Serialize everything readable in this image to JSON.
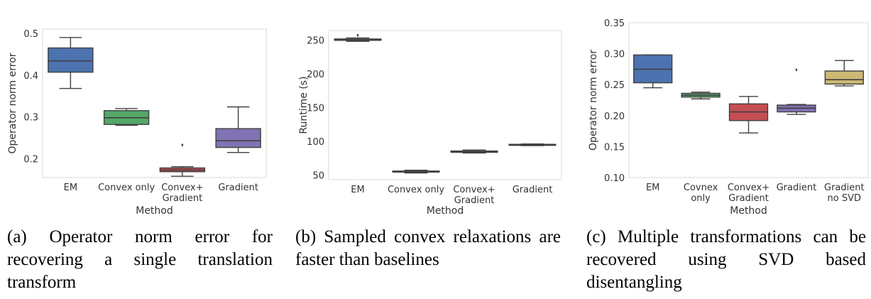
{
  "chart_data": [
    {
      "type": "box",
      "xlabel": "Method",
      "ylabel": "Operator norm error",
      "ylim": [
        0.155,
        0.51
      ],
      "yticks": [
        "0.2",
        "0.3",
        "0.4",
        "0.5"
      ],
      "ytick_values": [
        0.2,
        0.3,
        0.4,
        0.5
      ],
      "categories": [
        [
          "EM"
        ],
        [
          "Convex only"
        ],
        [
          "Convex+",
          "Gradient"
        ],
        [
          "Gradient"
        ]
      ],
      "boxes": [
        {
          "whisker_low": 0.368,
          "q1": 0.407,
          "median": 0.434,
          "q3": 0.465,
          "whisker_high": 0.49,
          "outliers": [],
          "color": "#4c72b0"
        },
        {
          "whisker_low": 0.28,
          "q1": 0.282,
          "median": 0.298,
          "q3": 0.315,
          "whisker_high": 0.32,
          "outliers": [],
          "color": "#55a868"
        },
        {
          "whisker_low": 0.158,
          "q1": 0.169,
          "median": 0.173,
          "q3": 0.178,
          "whisker_high": 0.181,
          "outliers": [
            0.233
          ],
          "color": "#c44e52"
        },
        {
          "whisker_low": 0.215,
          "q1": 0.227,
          "median": 0.243,
          "q3": 0.272,
          "whisker_high": 0.324,
          "outliers": [],
          "color": "#8172b2"
        }
      ],
      "caption": "(a) Operator norm error for recovering a single translation transform"
    },
    {
      "type": "box",
      "xlabel": "Method",
      "ylabel": "Runtime (s)",
      "ylim": [
        43,
        264
      ],
      "yticks": [
        "50",
        "100",
        "150",
        "200",
        "250"
      ],
      "ytick_values": [
        50,
        100,
        150,
        200,
        250
      ],
      "categories": [
        [
          "EM"
        ],
        [
          "Convex only"
        ],
        [
          "Convex+",
          "Gradient"
        ],
        [
          "Gradient"
        ]
      ],
      "boxes": [
        {
          "whisker_low": 248,
          "q1": 249.5,
          "median": 250.5,
          "q3": 251.5,
          "whisker_high": 253,
          "outliers": [
            257
          ],
          "color": "#4c72b0"
        },
        {
          "whisker_low": 53,
          "q1": 54.2,
          "median": 55,
          "q3": 55.8,
          "whisker_high": 57,
          "outliers": [],
          "color": "#55a868"
        },
        {
          "whisker_low": 82.5,
          "q1": 83.5,
          "median": 84.5,
          "q3": 85.5,
          "whisker_high": 87,
          "outliers": [],
          "color": "#c44e52"
        },
        {
          "whisker_low": 93.5,
          "q1": 94.2,
          "median": 94.8,
          "q3": 95.4,
          "whisker_high": 96,
          "outliers": [],
          "color": "#8172b2"
        }
      ],
      "caption": "(b) Sampled convex relaxations are faster than baselines"
    },
    {
      "type": "box",
      "xlabel": "Method",
      "ylabel": "Operator norm error",
      "ylim": [
        0.1,
        0.35
      ],
      "yticks": [
        "0.10",
        "0.15",
        "0.20",
        "0.25",
        "0.30",
        "0.35"
      ],
      "ytick_values": [
        0.1,
        0.15,
        0.2,
        0.25,
        0.3,
        0.35
      ],
      "categories": [
        [
          "EM"
        ],
        [
          "Covnex",
          "only"
        ],
        [
          "Convex+",
          "Gradient"
        ],
        [
          "Gradient"
        ],
        [
          "Gradient",
          "no SVD"
        ]
      ],
      "boxes": [
        {
          "whisker_low": 0.245,
          "q1": 0.253,
          "median": 0.275,
          "q3": 0.298,
          "whisker_high": 0.298,
          "outliers": [],
          "color": "#4c72b0"
        },
        {
          "whisker_low": 0.227,
          "q1": 0.23,
          "median": 0.233,
          "q3": 0.236,
          "whisker_high": 0.238,
          "outliers": [],
          "color": "#55a868"
        },
        {
          "whisker_low": 0.172,
          "q1": 0.192,
          "median": 0.206,
          "q3": 0.219,
          "whisker_high": 0.231,
          "outliers": [],
          "color": "#c44e52"
        },
        {
          "whisker_low": 0.202,
          "q1": 0.206,
          "median": 0.212,
          "q3": 0.217,
          "whisker_high": 0.218,
          "outliers": [
            0.274
          ],
          "color": "#8172b2"
        },
        {
          "whisker_low": 0.248,
          "q1": 0.251,
          "median": 0.258,
          "q3": 0.272,
          "whisker_high": 0.289,
          "outliers": [],
          "color": "#ccb974"
        }
      ],
      "caption": "(c) Multiple transformations can be recovered using SVD based disentangling"
    }
  ]
}
